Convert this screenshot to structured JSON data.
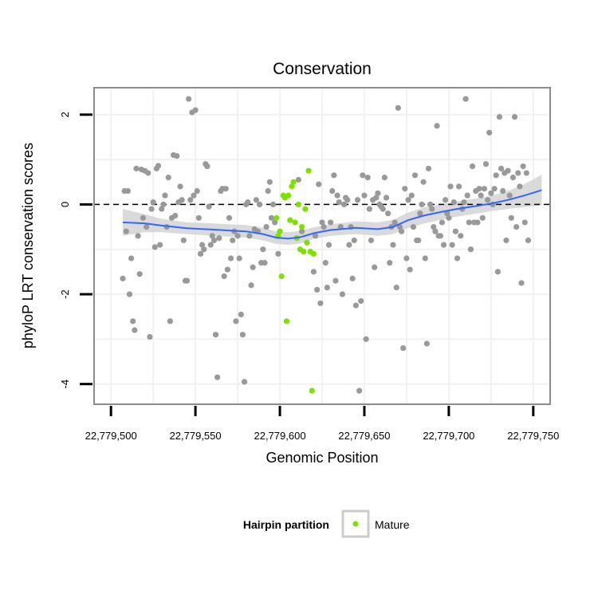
{
  "chart_data": {
    "type": "scatter",
    "title": "Conservation",
    "xlabel": "Genomic Position",
    "ylabel": "phyloP LRT conservation scores",
    "xlim": [
      22779490,
      22779760
    ],
    "ylim": [
      -4.45,
      2.6
    ],
    "x_ticks": [
      22779500,
      22779550,
      22779600,
      22779650,
      22779700,
      22779750
    ],
    "x_tick_labels": [
      "22,779,500",
      "22,779,550",
      "22,779,600",
      "22,779,650",
      "22,779,700",
      "22,779,750"
    ],
    "y_ticks": [
      -4,
      -2,
      0,
      2
    ],
    "y_tick_labels": [
      "-4",
      "-2",
      "0",
      "2"
    ],
    "grid": true,
    "reference_line": {
      "y": 0,
      "style": "dashed"
    },
    "colors": {
      "other": "#999999",
      "mature": "#7fe000",
      "smooth": "#3366ff",
      "band": "#d4d4d4"
    },
    "legend": {
      "position": "bottom",
      "title": "Hairpin partition",
      "entries": [
        "Mature"
      ]
    },
    "series": [
      {
        "label": "other",
        "points": [
          [
            22779507,
            -1.65
          ],
          [
            22779508,
            0.3
          ],
          [
            22779509,
            -0.6
          ],
          [
            22779510,
            0.3
          ],
          [
            22779511,
            -2.0
          ],
          [
            22779512,
            -1.2
          ],
          [
            22779513,
            -2.6
          ],
          [
            22779514,
            -2.8
          ],
          [
            22779515,
            0.8
          ],
          [
            22779516,
            -0.7
          ],
          [
            22779517,
            -1.55
          ],
          [
            22779518,
            0.78
          ],
          [
            22779519,
            -0.3
          ],
          [
            22779520,
            0.75
          ],
          [
            22779521,
            -0.5
          ],
          [
            22779522,
            0.7
          ],
          [
            22779523,
            -2.95
          ],
          [
            22779524,
            -0.1
          ],
          [
            22779525,
            0.05
          ],
          [
            22779526,
            -0.95
          ],
          [
            22779527,
            0.8
          ],
          [
            22779528,
            0.86
          ],
          [
            22779529,
            -0.9
          ],
          [
            22779530,
            -0.1
          ],
          [
            22779531,
            0.0
          ],
          [
            22779532,
            0.2
          ],
          [
            22779533,
            -0.5
          ],
          [
            22779534,
            0.6
          ],
          [
            22779535,
            -2.6
          ],
          [
            22779536,
            -0.3
          ],
          [
            22779537,
            1.1
          ],
          [
            22779538,
            -0.25
          ],
          [
            22779539,
            1.08
          ],
          [
            22779540,
            0.05
          ],
          [
            22779541,
            0.4
          ],
          [
            22779542,
            0.1
          ],
          [
            22779543,
            -0.8
          ],
          [
            22779544,
            -1.7
          ],
          [
            22779545,
            -1.7
          ],
          [
            22779546,
            2.35
          ],
          [
            22779547,
            0.1
          ],
          [
            22779548,
            2.05
          ],
          [
            22779549,
            0.2
          ],
          [
            22779550,
            2.1
          ],
          [
            22779551,
            0.3
          ],
          [
            22779552,
            -0.3
          ],
          [
            22779553,
            -1.1
          ],
          [
            22779554,
            -0.9
          ],
          [
            22779555,
            -1.0
          ],
          [
            22779556,
            0.9
          ],
          [
            22779557,
            0.85
          ],
          [
            22779558,
            -0.05
          ],
          [
            22779559,
            -0.9
          ],
          [
            22779560,
            -0.7
          ],
          [
            22779561,
            -0.8
          ],
          [
            22779562,
            -2.9
          ],
          [
            22779563,
            -3.85
          ],
          [
            22779564,
            -0.75
          ],
          [
            22779565,
            0.3
          ],
          [
            22779566,
            0.35
          ],
          [
            22779567,
            -1.6
          ],
          [
            22779568,
            0.35
          ],
          [
            22779569,
            -1.45
          ],
          [
            22779570,
            -0.3
          ],
          [
            22779571,
            -1.2
          ],
          [
            22779572,
            -0.8
          ],
          [
            22779573,
            -0.6
          ],
          [
            22779574,
            -2.6
          ],
          [
            22779575,
            -0.7
          ],
          [
            22779576,
            -1.2
          ],
          [
            22779577,
            -2.45
          ],
          [
            22779578,
            -2.9
          ],
          [
            22779579,
            -3.95
          ],
          [
            22779580,
            0.0
          ],
          [
            22779581,
            0.05
          ],
          [
            22779582,
            -0.7
          ],
          [
            22779583,
            -1.8
          ],
          [
            22779584,
            -1.4
          ],
          [
            22779585,
            -0.55
          ],
          [
            22779586,
            0.1
          ],
          [
            22779587,
            -0.6
          ],
          [
            22779588,
            0.0
          ],
          [
            22779589,
            -1.3
          ],
          [
            22779590,
            -1.0
          ],
          [
            22779591,
            -1.3
          ],
          [
            22779592,
            -0.5
          ],
          [
            22779593,
            0.3
          ],
          [
            22779594,
            0.5
          ],
          [
            22779595,
            -0.3
          ],
          [
            22779596,
            0.0
          ],
          [
            22779597,
            -0.4
          ],
          [
            22779599,
            -1.1
          ],
          [
            22779611,
            0.55
          ],
          [
            22779613,
            -0.6
          ],
          [
            22779620,
            -1.5
          ],
          [
            22779621,
            -0.7
          ],
          [
            22779622,
            -1.9
          ],
          [
            22779623,
            0.45
          ],
          [
            22779624,
            -2.2
          ],
          [
            22779625,
            -0.4
          ],
          [
            22779626,
            -0.5
          ],
          [
            22779627,
            -1.3
          ],
          [
            22779628,
            -1.85
          ],
          [
            22779629,
            -0.9
          ],
          [
            22779630,
            -0.4
          ],
          [
            22779631,
            0.3
          ],
          [
            22779632,
            0.65
          ],
          [
            22779633,
            -1.7
          ],
          [
            22779634,
            0.2
          ],
          [
            22779635,
            0.05
          ],
          [
            22779636,
            -0.5
          ],
          [
            22779637,
            -2.0
          ],
          [
            22779638,
            0.0
          ],
          [
            22779639,
            0.15
          ],
          [
            22779640,
            0.1
          ],
          [
            22779641,
            -0.9
          ],
          [
            22779642,
            -0.5
          ],
          [
            22779643,
            -1.65
          ],
          [
            22779644,
            -0.8
          ],
          [
            22779645,
            -2.25
          ],
          [
            22779646,
            0.1
          ],
          [
            22779647,
            -4.15
          ],
          [
            22779648,
            -2.15
          ],
          [
            22779649,
            0.65
          ],
          [
            22779650,
            0.2
          ],
          [
            22779651,
            -3.0
          ],
          [
            22779652,
            0.6
          ],
          [
            22779653,
            -0.1
          ],
          [
            22779654,
            -0.8
          ],
          [
            22779655,
            0.1
          ],
          [
            22779656,
            -1.4
          ],
          [
            22779657,
            0.15
          ],
          [
            22779658,
            0.25
          ],
          [
            22779659,
            0.0
          ],
          [
            22779660,
            -0.05
          ],
          [
            22779661,
            -0.1
          ],
          [
            22779662,
            0.6
          ],
          [
            22779663,
            0.15
          ],
          [
            22779664,
            -0.2
          ],
          [
            22779665,
            -1.3
          ],
          [
            22779666,
            -0.5
          ],
          [
            22779667,
            -0.9
          ],
          [
            22779668,
            -0.4
          ],
          [
            22779669,
            -1.85
          ],
          [
            22779670,
            2.15
          ],
          [
            22779671,
            -0.5
          ],
          [
            22779672,
            -0.6
          ],
          [
            22779673,
            -3.2
          ],
          [
            22779674,
            0.35
          ],
          [
            22779675,
            -1.2
          ],
          [
            22779676,
            0.1
          ],
          [
            22779677,
            -1.45
          ],
          [
            22779678,
            0.2
          ],
          [
            22779679,
            -0.5
          ],
          [
            22779680,
            0.65
          ],
          [
            22779681,
            -0.8
          ],
          [
            22779682,
            -0.8
          ],
          [
            22779683,
            -0.2
          ],
          [
            22779684,
            0.0
          ],
          [
            22779685,
            0.5
          ],
          [
            22779686,
            -1.2
          ],
          [
            22779687,
            -3.1
          ],
          [
            22779688,
            0.8
          ],
          [
            22779689,
            0.0
          ],
          [
            22779690,
            -0.1
          ],
          [
            22779691,
            -0.5
          ],
          [
            22779692,
            -0.6
          ],
          [
            22779693,
            1.75
          ],
          [
            22779694,
            -0.7
          ],
          [
            22779695,
            -0.7
          ],
          [
            22779696,
            -0.4
          ],
          [
            22779697,
            -0.9
          ],
          [
            22779698,
            0.1
          ],
          [
            22779699,
            -0.2
          ],
          [
            22779700,
            -0.3
          ],
          [
            22779701,
            0.4
          ],
          [
            22779702,
            -0.9
          ],
          [
            22779703,
            0.05
          ],
          [
            22779704,
            -0.6
          ],
          [
            22779705,
            -1.2
          ],
          [
            22779706,
            0.4
          ],
          [
            22779707,
            -0.7
          ],
          [
            22779708,
            -0.1
          ],
          [
            22779709,
            0.05
          ],
          [
            22779710,
            2.35
          ],
          [
            22779711,
            0.2
          ],
          [
            22779712,
            -0.4
          ],
          [
            22779713,
            -1.0
          ],
          [
            22779714,
            0.85
          ],
          [
            22779715,
            -0.4
          ],
          [
            22779716,
            0.3
          ],
          [
            22779717,
            -0.4
          ],
          [
            22779718,
            0.35
          ],
          [
            22779719,
            0.2
          ],
          [
            22779720,
            -0.3
          ],
          [
            22779721,
            0.35
          ],
          [
            22779722,
            0.9
          ],
          [
            22779723,
            0.1
          ],
          [
            22779724,
            1.6
          ],
          [
            22779725,
            0.25
          ],
          [
            22779726,
            0.0
          ],
          [
            22779727,
            0.35
          ],
          [
            22779728,
            0.65
          ],
          [
            22779729,
            -1.5
          ],
          [
            22779730,
            1.95
          ],
          [
            22779731,
            0.8
          ],
          [
            22779732,
            0.3
          ],
          [
            22779733,
            0.7
          ],
          [
            22779734,
            -0.8
          ],
          [
            22779735,
            0.75
          ],
          [
            22779736,
            0.2
          ],
          [
            22779737,
            -0.3
          ],
          [
            22779738,
            0.6
          ],
          [
            22779739,
            1.95
          ],
          [
            22779740,
            -0.5
          ],
          [
            22779741,
            0.7
          ],
          [
            22779742,
            0.4
          ],
          [
            22779743,
            -1.75
          ],
          [
            22779744,
            0.85
          ],
          [
            22779745,
            -0.4
          ],
          [
            22779746,
            0.7
          ],
          [
            22779747,
            -0.8
          ]
        ]
      },
      {
        "label": "Mature",
        "points": [
          [
            22779598,
            -0.3
          ],
          [
            22779599,
            -0.7
          ],
          [
            22779600,
            -0.6
          ],
          [
            22779601,
            -1.6
          ],
          [
            22779602,
            0.2
          ],
          [
            22779603,
            0.15
          ],
          [
            22779604,
            -2.6
          ],
          [
            22779605,
            0.2
          ],
          [
            22779606,
            -0.35
          ],
          [
            22779607,
            0.4
          ],
          [
            22779608,
            0.5
          ],
          [
            22779609,
            -0.4
          ],
          [
            22779610,
            -0.75
          ],
          [
            22779611,
            0.0
          ],
          [
            22779612,
            -1.0
          ],
          [
            22779613,
            -0.5
          ],
          [
            22779614,
            -1.05
          ],
          [
            22779615,
            -0.1
          ],
          [
            22779616,
            -0.85
          ],
          [
            22779617,
            0.75
          ],
          [
            22779618,
            -1.05
          ],
          [
            22779619,
            -4.15
          ],
          [
            22779620,
            -1.1
          ]
        ]
      }
    ],
    "smooth": {
      "x": [
        22779507,
        22779520,
        22779530,
        22779545,
        22779560,
        22779570,
        22779580,
        22779590,
        22779598,
        22779605,
        22779612,
        22779620,
        22779630,
        22779645,
        22779658,
        22779667,
        22779676,
        22779685,
        22779695,
        22779705,
        22779715,
        22779725,
        22779735,
        22779745,
        22779755
      ],
      "y": [
        -0.4,
        -0.42,
        -0.47,
        -0.53,
        -0.56,
        -0.58,
        -0.6,
        -0.66,
        -0.74,
        -0.76,
        -0.73,
        -0.64,
        -0.57,
        -0.52,
        -0.55,
        -0.5,
        -0.35,
        -0.25,
        -0.17,
        -0.1,
        -0.04,
        0.02,
        0.1,
        0.2,
        0.32
      ],
      "lower": [
        -0.7,
        -0.62,
        -0.62,
        -0.66,
        -0.7,
        -0.72,
        -0.74,
        -0.8,
        -0.88,
        -0.9,
        -0.87,
        -0.77,
        -0.7,
        -0.66,
        -0.7,
        -0.66,
        -0.52,
        -0.43,
        -0.34,
        -0.27,
        -0.21,
        -0.15,
        -0.1,
        -0.06,
        -0.02
      ],
      "upper": [
        -0.1,
        -0.22,
        -0.32,
        -0.4,
        -0.42,
        -0.44,
        -0.46,
        -0.52,
        -0.6,
        -0.62,
        -0.59,
        -0.51,
        -0.44,
        -0.38,
        -0.4,
        -0.34,
        -0.18,
        -0.07,
        0.0,
        0.07,
        0.13,
        0.19,
        0.3,
        0.46,
        0.66
      ]
    }
  }
}
